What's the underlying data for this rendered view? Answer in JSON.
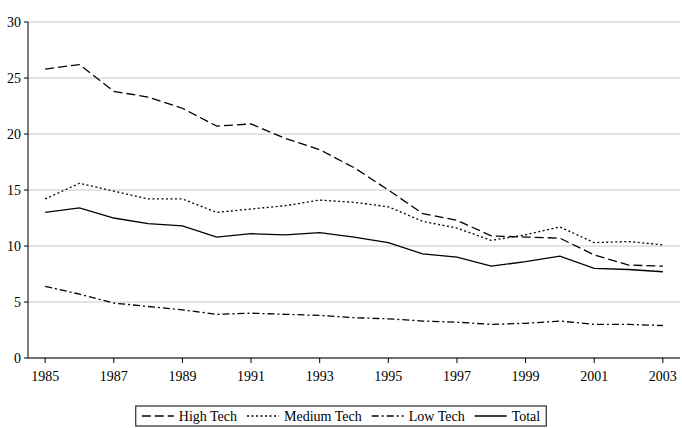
{
  "chart_data": {
    "type": "line",
    "x": [
      1985,
      1986,
      1987,
      1988,
      1989,
      1990,
      1991,
      1992,
      1993,
      1994,
      1995,
      1996,
      1997,
      1998,
      1999,
      2000,
      2001,
      2002,
      2003
    ],
    "series": [
      {
        "name": "High Tech",
        "color": "#000000",
        "line_style": "dashed",
        "values": [
          25.8,
          26.2,
          23.8,
          23.3,
          22.3,
          20.7,
          20.9,
          19.6,
          18.6,
          17.0,
          15.0,
          12.9,
          12.3,
          10.9,
          10.8,
          10.7,
          9.2,
          8.3,
          8.2
        ]
      },
      {
        "name": "Medium Tech",
        "color": "#000000",
        "line_style": "dotted",
        "values": [
          14.2,
          15.6,
          14.9,
          14.2,
          14.2,
          13.0,
          13.3,
          13.6,
          14.1,
          13.9,
          13.5,
          12.2,
          11.6,
          10.5,
          11.0,
          11.7,
          10.3,
          10.4,
          10.1
        ]
      },
      {
        "name": "Low Tech",
        "color": "#000000",
        "line_style": "dashdot",
        "values": [
          6.4,
          5.7,
          4.9,
          4.6,
          4.3,
          3.9,
          4.0,
          3.9,
          3.8,
          3.6,
          3.5,
          3.3,
          3.2,
          3.0,
          3.1,
          3.3,
          3.0,
          3.0,
          2.9
        ]
      },
      {
        "name": "Total",
        "color": "#000000",
        "line_style": "solid",
        "values": [
          13.0,
          13.4,
          12.5,
          12.0,
          11.8,
          10.8,
          11.1,
          11.0,
          11.2,
          10.8,
          10.3,
          9.3,
          9.0,
          8.2,
          8.6,
          9.1,
          8.0,
          7.9,
          7.7
        ]
      }
    ],
    "xlim": [
      1984.5,
      2003.5
    ],
    "xticks": [
      1985,
      1987,
      1989,
      1991,
      1993,
      1995,
      1997,
      1999,
      2001,
      2003
    ],
    "ylim": [
      0,
      30
    ],
    "yticks": [
      0,
      5,
      10,
      15,
      20,
      25,
      30
    ],
    "grid": true,
    "legend": "bottom"
  }
}
